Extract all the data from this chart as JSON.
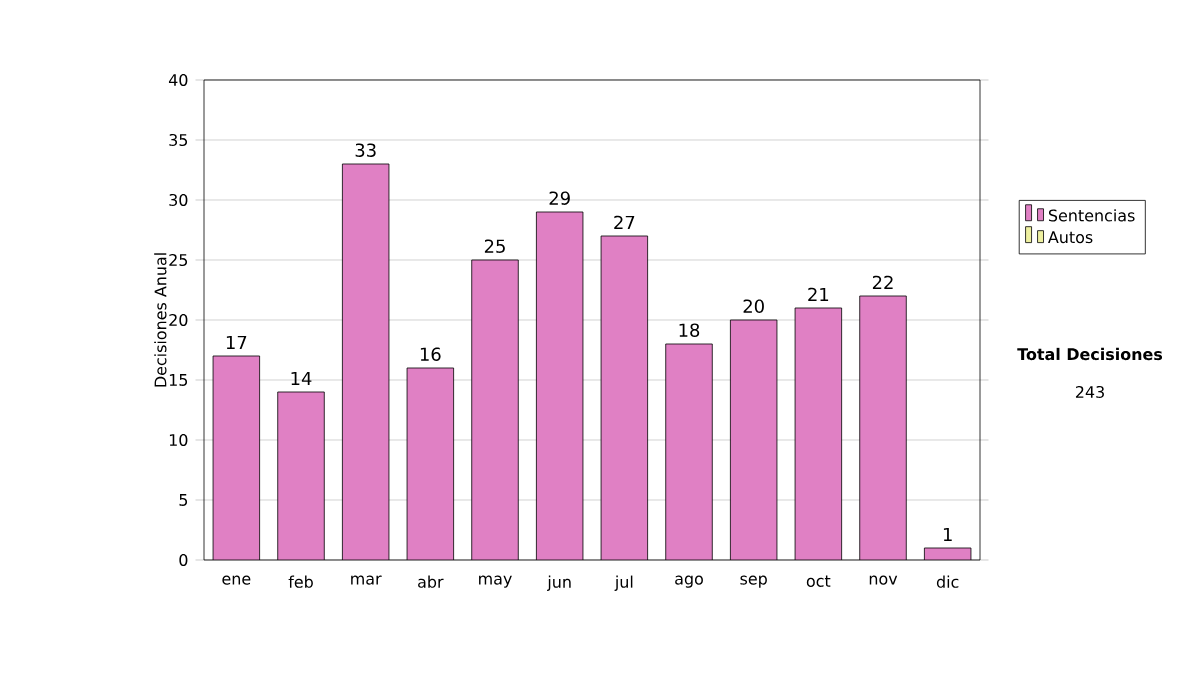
{
  "chart_data": {
    "type": "bar",
    "ylabel": "Decisiones Anual",
    "categories": [
      "ene",
      "feb",
      "mar",
      "abr",
      "may",
      "jun",
      "jul",
      "ago",
      "sep",
      "oct",
      "nov",
      "dic"
    ],
    "series": [
      {
        "name": "Sentencias",
        "color": "#e080c4",
        "values": [
          17,
          14,
          33,
          16,
          25,
          29,
          27,
          18,
          20,
          21,
          22,
          1
        ]
      },
      {
        "name": "Autos",
        "color": "#eef0a0",
        "values": [
          null,
          null,
          null,
          null,
          null,
          null,
          null,
          null,
          null,
          null,
          null,
          null
        ]
      }
    ],
    "ylim": [
      0,
      40
    ],
    "yticks": [
      0,
      5,
      10,
      15,
      20,
      25,
      30,
      35,
      40
    ],
    "grid": "y",
    "legend": "right",
    "data_labels": true,
    "annotations": [
      "Total Decisiones",
      "243"
    ]
  }
}
